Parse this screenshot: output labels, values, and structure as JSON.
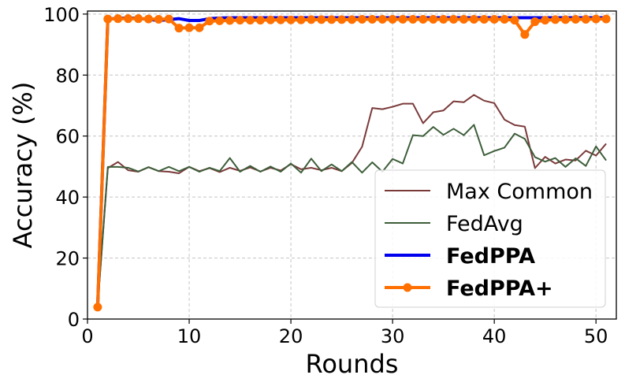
{
  "chart_data": {
    "type": "line",
    "xlabel": "Rounds",
    "ylabel": "Accuracy (%)",
    "xlim": [
      0,
      52
    ],
    "ylim": [
      0,
      101
    ],
    "xticks": [
      0,
      10,
      20,
      30,
      40,
      50
    ],
    "yticks": [
      0,
      20,
      40,
      60,
      80,
      100
    ],
    "grid": true,
    "legend_position": "lower-right",
    "x": [
      1,
      2,
      3,
      4,
      5,
      6,
      7,
      8,
      9,
      10,
      11,
      12,
      13,
      14,
      15,
      16,
      17,
      18,
      19,
      20,
      21,
      22,
      23,
      24,
      25,
      26,
      27,
      28,
      29,
      30,
      31,
      32,
      33,
      34,
      35,
      36,
      37,
      38,
      39,
      40,
      41,
      42,
      43,
      44,
      45,
      46,
      47,
      48,
      49,
      50,
      51
    ],
    "series": [
      {
        "name": "Max Common",
        "color": "#7b3a3a",
        "style": "line",
        "bold": false,
        "values": [
          4.5,
          49.5,
          51.5,
          48.8,
          48.3,
          49.8,
          48.5,
          48.3,
          47.8,
          49.9,
          48.5,
          49.5,
          48.2,
          49.6,
          48.6,
          49.7,
          48.4,
          49.6,
          48.7,
          50.8,
          49.1,
          49.6,
          48.8,
          49.6,
          48.5,
          51.2,
          56.5,
          69.2,
          68.8,
          69.6,
          70.6,
          70.6,
          64.2,
          67.8,
          68.4,
          71.4,
          71.1,
          73.5,
          71.6,
          70.8,
          65.4,
          63.6,
          63.1,
          49.5,
          53.2,
          51.0,
          52.3,
          52.0,
          55.2,
          53.6,
          57.5
        ]
      },
      {
        "name": "FedAvg",
        "color": "#3d5e3a",
        "style": "line",
        "bold": false,
        "values": [
          4.0,
          49.9,
          49.9,
          49.6,
          48.4,
          49.8,
          48.5,
          49.9,
          48.5,
          49.9,
          48.3,
          49.6,
          48.5,
          52.8,
          48.3,
          50.2,
          48.3,
          50.0,
          48.3,
          51.0,
          48.0,
          52.6,
          48.5,
          50.7,
          48.5,
          51.5,
          48.0,
          51.4,
          48.3,
          52.5,
          51.0,
          60.3,
          60.0,
          63.0,
          60.4,
          62.4,
          60.3,
          63.7,
          53.7,
          55.1,
          56.2,
          60.8,
          59.1,
          53.1,
          51.6,
          52.8,
          49.9,
          52.7,
          50.2,
          56.6,
          52.0
        ]
      },
      {
        "name": "FedPPA",
        "color": "#0000ee",
        "style": "line",
        "bold": true,
        "values": [
          4.0,
          98.4,
          98.6,
          98.7,
          98.6,
          98.3,
          97.9,
          98.2,
          98.5,
          97.9,
          97.9,
          98.5,
          98.7,
          98.8,
          98.8,
          98.8,
          98.8,
          98.8,
          98.8,
          98.8,
          98.8,
          98.8,
          98.8,
          98.8,
          98.8,
          98.8,
          98.8,
          98.8,
          98.8,
          98.8,
          98.8,
          98.8,
          98.8,
          98.8,
          98.8,
          98.8,
          98.8,
          98.8,
          98.8,
          98.8,
          98.8,
          98.8,
          98.8,
          98.8,
          98.8,
          98.8,
          98.8,
          98.8,
          98.8,
          98.8,
          98.8
        ]
      },
      {
        "name": "FedPPA+",
        "color": "#ff7000",
        "style": "line-marker",
        "bold": true,
        "values": [
          3.9,
          98.4,
          98.5,
          98.5,
          98.5,
          98.4,
          98.3,
          98.4,
          95.4,
          95.5,
          95.5,
          97.7,
          97.8,
          97.9,
          98.0,
          98.0,
          98.0,
          98.1,
          98.1,
          98.1,
          98.1,
          98.2,
          98.2,
          98.2,
          98.2,
          98.2,
          98.3,
          98.3,
          98.3,
          98.3,
          98.3,
          98.3,
          98.3,
          98.3,
          98.3,
          98.3,
          98.3,
          98.3,
          98.3,
          98.3,
          98.3,
          98.0,
          93.3,
          97.5,
          98.0,
          98.2,
          98.2,
          98.3,
          98.3,
          98.4,
          98.4
        ]
      }
    ]
  }
}
